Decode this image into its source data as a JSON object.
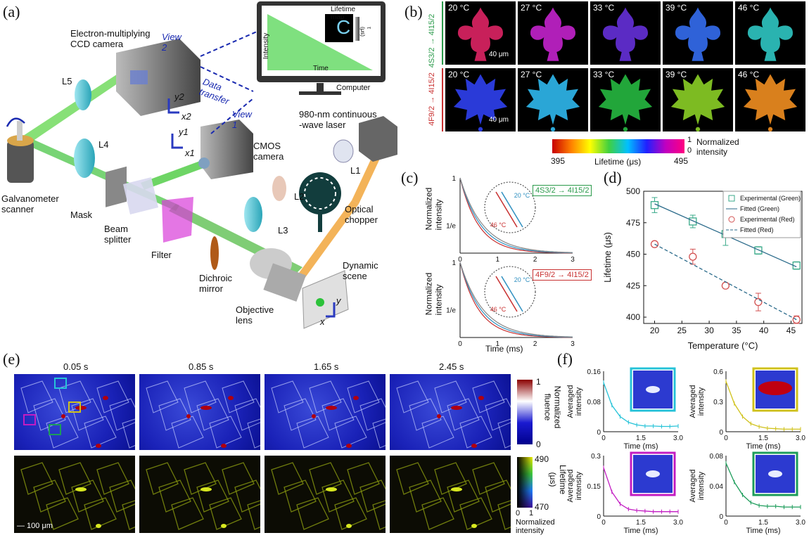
{
  "panels": {
    "a": "(a)",
    "b": "(b)",
    "c": "(c)",
    "d": "(d)",
    "e": "(e)",
    "f": "(f)"
  },
  "setup": {
    "emccd": "Electron-multiplying\nCCD camera",
    "view2": "View 2",
    "view1": "View 1",
    "data_transfer": "Data transfer",
    "computer": "Computer",
    "lifetime_map": "Lifetime map",
    "intensity": "Intensity",
    "time": "Time",
    "tau_unit": "τ (μs)",
    "cmos": "CMOS\ncamera",
    "laser": "980-nm continuous\n-wave laser",
    "l1": "L1",
    "l2": "L2",
    "l3": "L3",
    "l4": "L4",
    "l5": "L5",
    "optical_chopper": "Optical\nchopper",
    "galvo": "Galvanometer\nscanner",
    "mask": "Mask",
    "beam_splitter": "Beam\nsplitter",
    "filter": "Filter",
    "dichroic": "Dichroic\nmirror",
    "objective": "Objective\nlens",
    "dynamic": "Dynamic\nscene",
    "y2": "y2",
    "x2": "x2",
    "y1": "y1",
    "x1": "x1",
    "y": "y",
    "x": "x"
  },
  "panel_b": {
    "temps": [
      "20 °C",
      "27 °C",
      "33 °C",
      "39 °C",
      "46 °C"
    ],
    "row1_colors": [
      "#c8205a",
      "#b01fb8",
      "#5b2bc4",
      "#2f62d8",
      "#2ab3b0"
    ],
    "row2_colors": [
      "#2a3ad8",
      "#2aa6d6",
      "#22a63a",
      "#7dbb22",
      "#d9801d"
    ],
    "row1_label": "4S3/2 → 4I15/2",
    "row2_label": "4F9/2 → 4I15/2",
    "scale": "40 μm",
    "cbar_min": "395",
    "cbar_max": "495",
    "cbar_label": "Lifetime (μs)",
    "norm_top": "1",
    "norm_bottom": "0",
    "norm_label": "Normalized\nintensity"
  },
  "panel_c": {
    "ylabel": "Normalized\nintensity",
    "xlabel": "Time (ms)",
    "ytick_top": "1",
    "ytick_mid": "1/e",
    "xticks": [
      "0",
      "1",
      "2",
      "3"
    ],
    "green_trans": "4S3/2 → 4I15/2",
    "red_trans": "4F9/2 → 4I15/2",
    "t_low": "20 °C",
    "t_high": "46 °C"
  },
  "chart_data": {
    "type": "scatter",
    "xlabel": "Temperature (°C)",
    "ylabel": "Lifetime (μs)",
    "xlim": [
      18,
      47
    ],
    "ylim": [
      395,
      500
    ],
    "xticks": [
      20,
      25,
      30,
      35,
      40,
      45
    ],
    "yticks": [
      400,
      425,
      450,
      475,
      500
    ],
    "legend_position": "top-right",
    "series": [
      {
        "name": "Experimental (Green)",
        "color": "#3aaa8a",
        "marker": "square",
        "x": [
          20,
          27,
          33,
          39,
          46
        ],
        "y": [
          489,
          476,
          466,
          453,
          441
        ],
        "err": [
          6,
          5,
          9,
          3,
          3
        ]
      },
      {
        "name": "Fitted (Green)",
        "color": "#2a6a8a",
        "style": "solid",
        "x": [
          20,
          46
        ],
        "y": [
          490,
          440
        ]
      },
      {
        "name": "Experimental (Red)",
        "color": "#d25050",
        "marker": "circle",
        "x": [
          20,
          27,
          33,
          39,
          46
        ],
        "y": [
          458,
          448,
          425,
          412,
          398
        ],
        "err": [
          2,
          6,
          2,
          7,
          3
        ]
      },
      {
        "name": "Fitted (Red)",
        "color": "#2a6a8a",
        "style": "dashed",
        "x": [
          20,
          46
        ],
        "y": [
          458,
          398
        ]
      }
    ]
  },
  "panel_e": {
    "times": [
      "0.05 s",
      "0.85 s",
      "1.65 s",
      "2.45 s"
    ],
    "fluence_top": "1",
    "fluence_bottom": "0",
    "fluence_label": "Normalized\nfluence",
    "life_top": "490",
    "life_bottom": "470",
    "life_label": "Lifetime\n(μs)",
    "norm_bottom": "0",
    "norm_top": "1",
    "norm_label": "Normalized\nintensity",
    "scale": "100 μm"
  },
  "panel_f": {
    "ylabel": "Averaged\nintensity",
    "xlabel": "Time (ms)",
    "xticks": [
      "0",
      "1.5",
      "3.0"
    ],
    "plots": [
      {
        "color": "#27c3d8",
        "yticks": [
          "0.16",
          "0.08",
          "0"
        ],
        "ymax": 0.16,
        "values": [
          0.13,
          0.07,
          0.04,
          0.025,
          0.018,
          0.015,
          0.015,
          0.014,
          0.014,
          0.015
        ]
      },
      {
        "color": "#d0c21c",
        "yticks": [
          "0.6",
          "0.3",
          "0"
        ],
        "ymax": 0.6,
        "values": [
          0.5,
          0.28,
          0.15,
          0.08,
          0.05,
          0.035,
          0.03,
          0.025,
          0.025,
          0.025
        ]
      },
      {
        "color": "#c21cc2",
        "yticks": [
          "0.3",
          "0.15",
          "0"
        ],
        "ymax": 0.3,
        "values": [
          0.24,
          0.12,
          0.06,
          0.035,
          0.028,
          0.025,
          0.022,
          0.022,
          0.022,
          0.022
        ]
      },
      {
        "color": "#1c9c5a",
        "yticks": [
          "0.08",
          "0.04",
          "0"
        ],
        "ymax": 0.08,
        "values": [
          0.07,
          0.045,
          0.028,
          0.018,
          0.014,
          0.013,
          0.013,
          0.012,
          0.012,
          0.012
        ]
      }
    ]
  }
}
